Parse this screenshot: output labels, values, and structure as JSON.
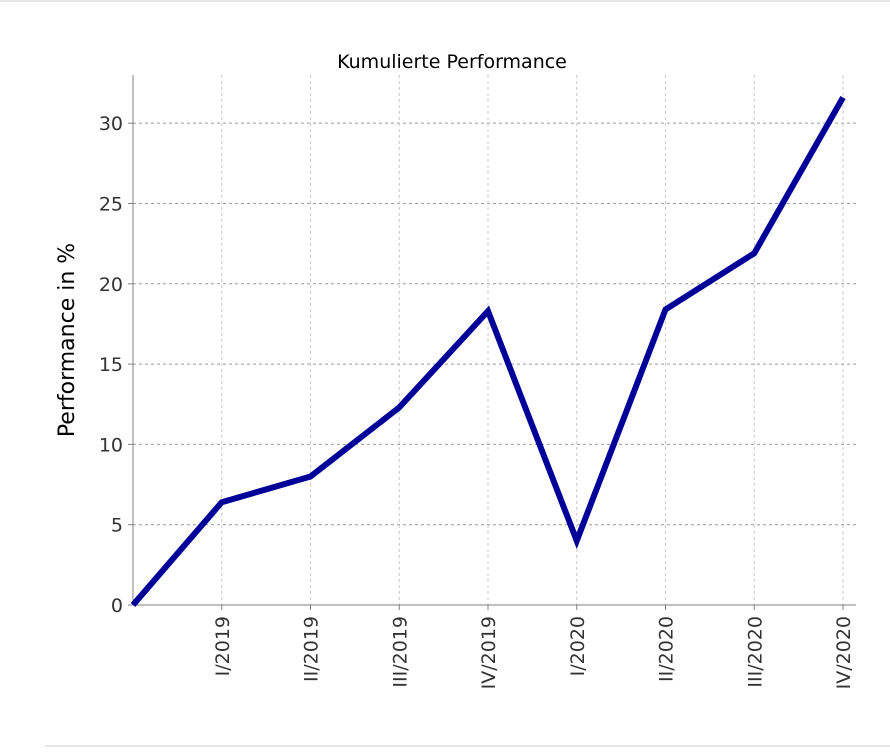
{
  "chart_data": {
    "type": "line",
    "title": "Kumulierte Performance",
    "xlabel": "",
    "ylabel": "Performance in %",
    "categories": [
      "",
      "I/2019",
      "II/2019",
      "III/2019",
      "IV/2019",
      "I/2020",
      "II/2020",
      "III/2020",
      "IV/2020"
    ],
    "series": [
      {
        "values": [
          0,
          6.4,
          8.0,
          12.3,
          18.3,
          4.0,
          18.4,
          21.9,
          31.6
        ]
      }
    ],
    "ylim": [
      0,
      33
    ],
    "yticks": [
      0,
      5,
      10,
      15,
      20,
      25,
      30
    ],
    "grid": true,
    "line_color": "#000099",
    "grid_color": "#c8c8c8"
  }
}
